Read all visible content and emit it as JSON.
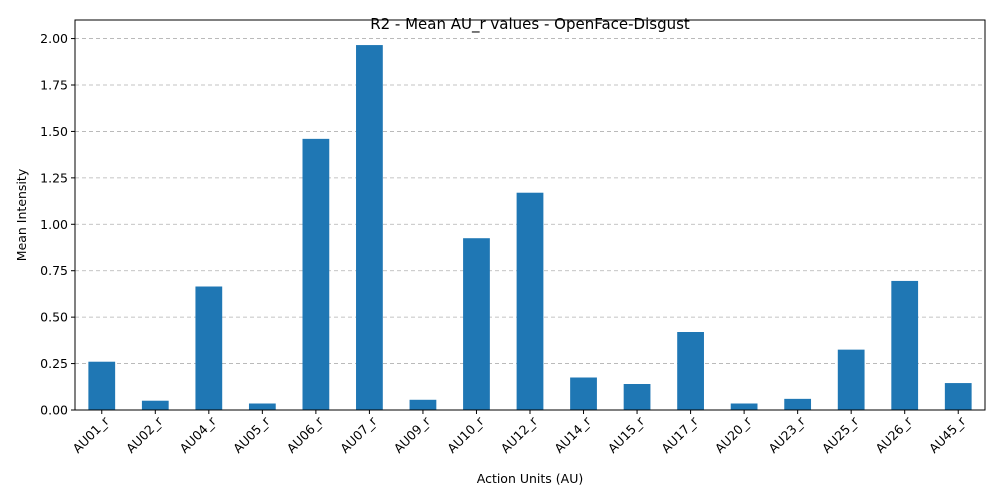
{
  "chart_data": {
    "type": "bar",
    "title": "R2 - Mean AU_r values - OpenFace-Disgust",
    "xlabel": "Action Units (AU)",
    "ylabel": "Mean Intensity",
    "categories": [
      "AU01_r",
      "AU02_r",
      "AU04_r",
      "AU05_r",
      "AU06_r",
      "AU07_r",
      "AU09_r",
      "AU10_r",
      "AU12_r",
      "AU14_r",
      "AU15_r",
      "AU17_r",
      "AU20_r",
      "AU23_r",
      "AU25_r",
      "AU26_r",
      "AU45_r"
    ],
    "values": [
      0.26,
      0.05,
      0.665,
      0.035,
      1.46,
      1.965,
      0.055,
      0.925,
      1.17,
      0.175,
      0.14,
      0.42,
      0.035,
      0.06,
      0.325,
      0.695,
      0.145
    ],
    "ylim": [
      0,
      2.1
    ],
    "yticks": [
      "0.00",
      "0.25",
      "0.50",
      "0.75",
      "1.00",
      "1.25",
      "1.50",
      "1.75",
      "2.00"
    ],
    "grid": "y-dashed",
    "bar_color": "#1f77b4"
  }
}
